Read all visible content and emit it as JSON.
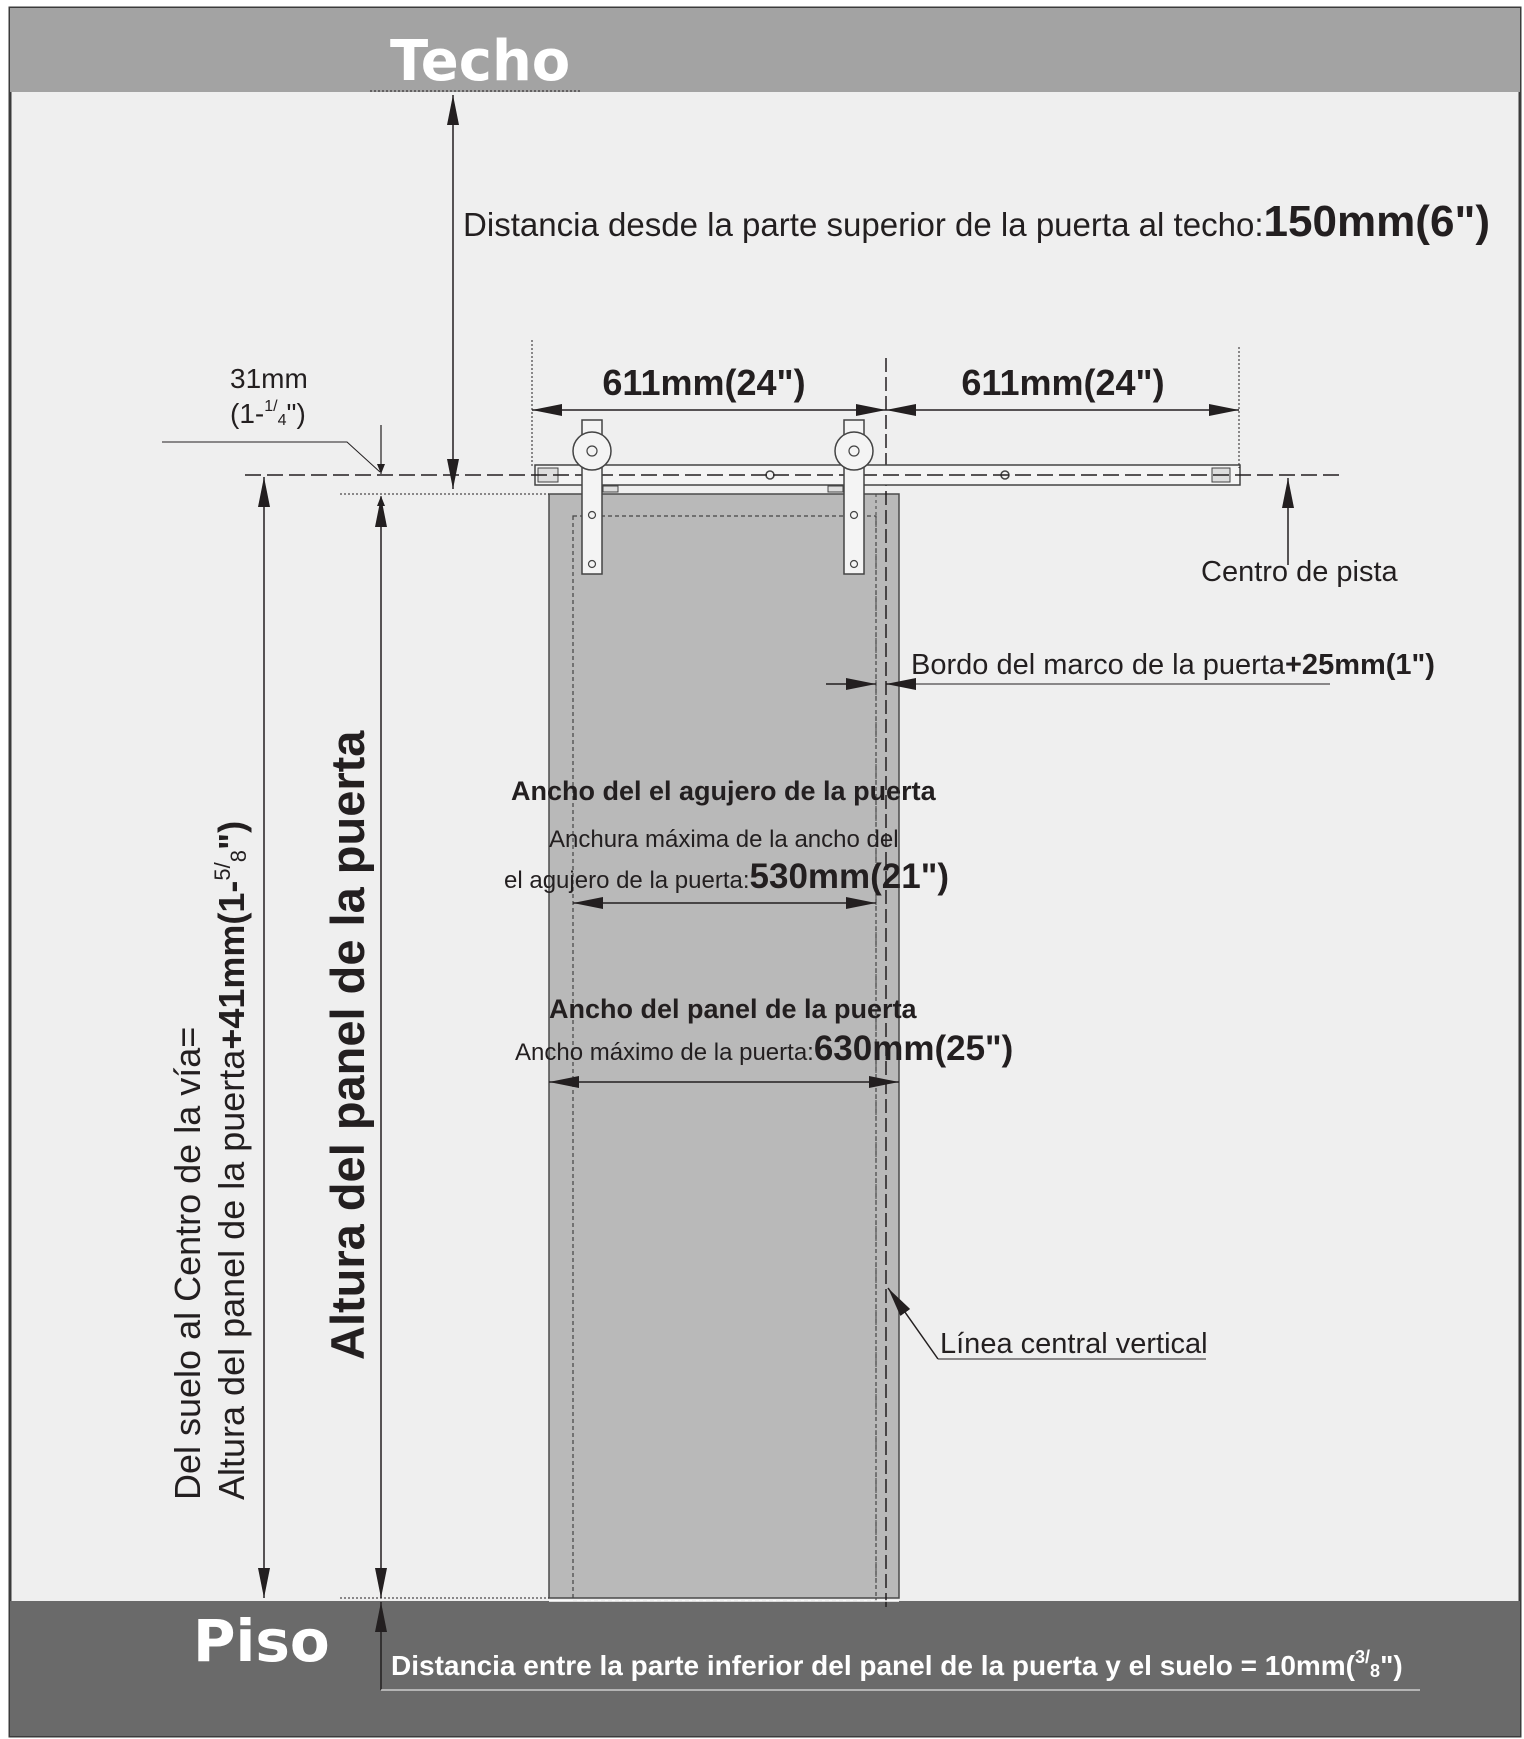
{
  "ceiling": {
    "label": "Techo"
  },
  "floor": {
    "label": "Piso"
  },
  "top_clearance": {
    "text": "Distancia desde la parte superior de la puerta al techo:",
    "value": "150mm(6\")"
  },
  "track_offset": {
    "line1": "31mm",
    "line2_main": "(1-",
    "line2_num": "1",
    "line2_den": "4",
    "line2_end": "\")"
  },
  "hanger_spacing": {
    "left": "611mm(24\")",
    "right": "611mm(24\")"
  },
  "track_center": {
    "label": "Centro de pista"
  },
  "frame_edge": {
    "text": "Bordo del marco de la puerta",
    "value": "+25mm(1\")"
  },
  "opening": {
    "title": "Ancho del el agujero de la puerta",
    "line1": "Anchura máxima de la ancho del",
    "line2": "el agujero de la puerta:",
    "value": "530mm(21\")"
  },
  "panel_width": {
    "title": "Ancho del panel de la puerta",
    "line1": "Ancho máximo de la puerta:",
    "value": "630mm(25\")"
  },
  "vertical_centerline": {
    "label": "Línea central vertical"
  },
  "door_height": {
    "label": "Altura del panel de la puerta"
  },
  "floor_to_track": {
    "line1": "Del suelo al Centro de la vía=",
    "line2": "Altura del panel de la puerta",
    "value_main": "+41mm(1-",
    "value_num": "5",
    "value_den": "8",
    "value_end": "\")"
  },
  "bottom_gap": {
    "text": "Distancia entre la parte inferior del panel de la puerta y el suelo = 10mm(",
    "num": "3",
    "den": "8",
    "end": "\")"
  },
  "colors": {
    "ceiling_band": "#a3a3a3",
    "floor_band": "#6a6a6a",
    "wall": "#efefef",
    "door": "#b9b9b9",
    "line": "#231f20"
  }
}
